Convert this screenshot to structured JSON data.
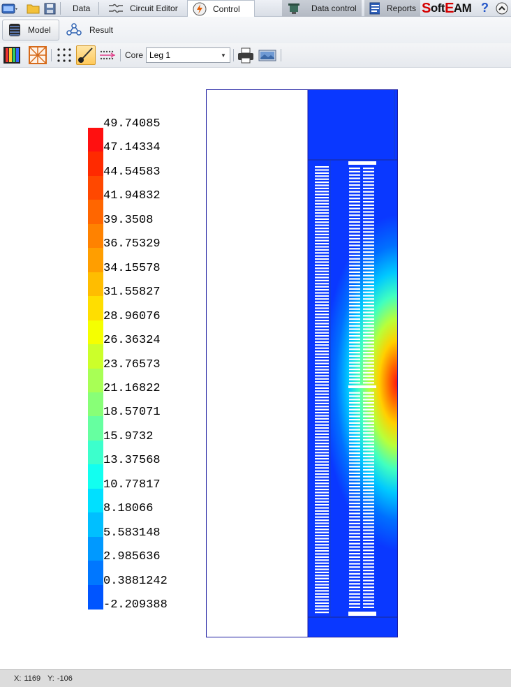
{
  "tabs": [
    {
      "label": "Data"
    },
    {
      "label": "Circuit Editor"
    },
    {
      "label": "Control"
    },
    {
      "label": "Data control"
    },
    {
      "label": "Reports"
    }
  ],
  "brand": "SoftEAM",
  "help_glyph": "?",
  "ribbon": {
    "model_label": "Model",
    "result_label": "Result"
  },
  "toolbar": {
    "core_label": "Core",
    "core_value": "Leg 1"
  },
  "legend": {
    "values": [
      "49.74085",
      "47.14334",
      "44.54583",
      "41.94832",
      "39.3508",
      "36.75329",
      "34.15578",
      "31.55827",
      "28.96076",
      "26.36324",
      "23.76573",
      "21.16822",
      "18.57071",
      "15.9732",
      "13.37568",
      "10.77817",
      "8.18066",
      "5.583148",
      "2.985636",
      "0.3881242",
      "-2.209388"
    ],
    "colors": [
      "#ff1010",
      "#ff2a00",
      "#ff4800",
      "#ff6600",
      "#ff8200",
      "#ff9e00",
      "#ffbd00",
      "#ffde00",
      "#f5ff00",
      "#ccff2a",
      "#a8ff55",
      "#88ff77",
      "#66ffa0",
      "#3cffcc",
      "#12fff0",
      "#00e0ff",
      "#00bfff",
      "#0099ff",
      "#0077ff",
      "#0055ff",
      "#0a38ff"
    ]
  },
  "status": {
    "x_label": "X:",
    "x_value": "1169",
    "y_label": "Y:",
    "y_value": "-106"
  }
}
